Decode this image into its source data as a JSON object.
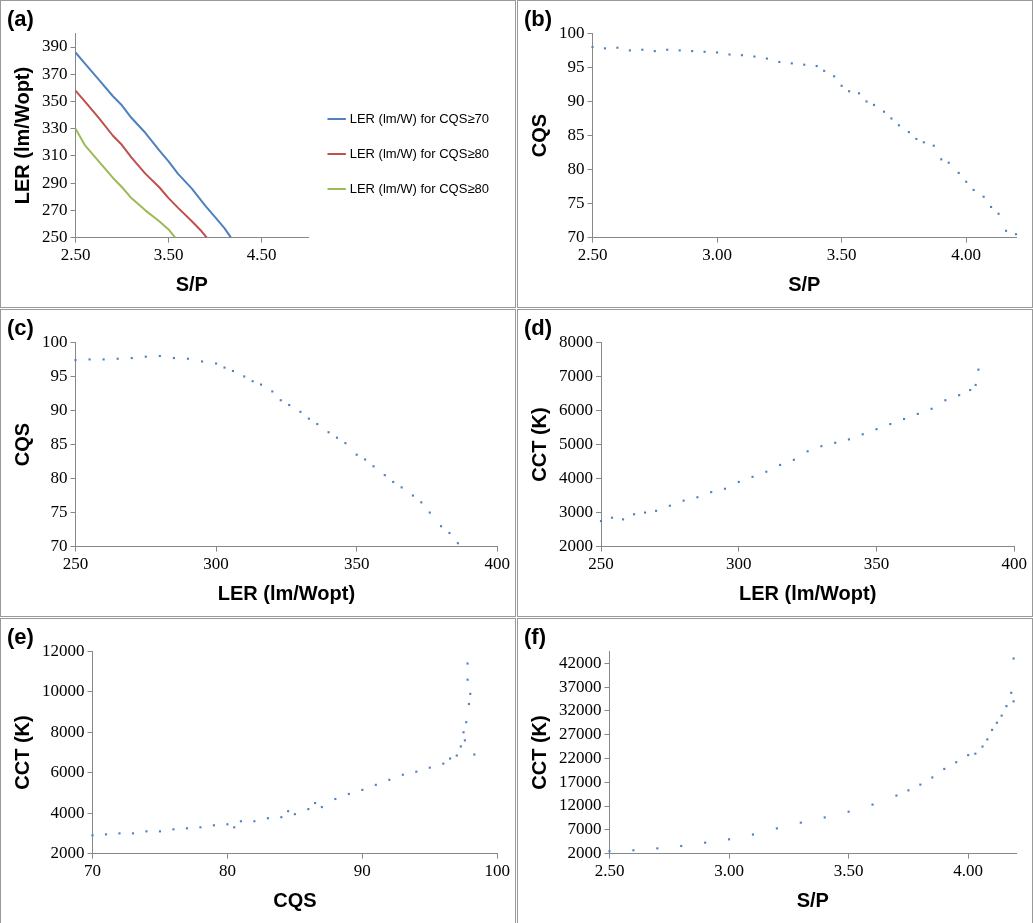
{
  "chart_data": [
    {
      "type": "line",
      "title": "(a)",
      "xlabel": "S/P",
      "ylabel": "LER (lm/Wopt)",
      "marker": "none",
      "legend": "right",
      "xlim": [
        2.5,
        5.0
      ],
      "xticks": [
        {
          "value": 2.5,
          "label": "2.50"
        },
        {
          "value": 3.5,
          "label": "3.50"
        },
        {
          "value": 4.5,
          "label": "4.50"
        }
      ],
      "ylim": [
        250,
        400
      ],
      "yticks": [
        250,
        270,
        290,
        310,
        330,
        350,
        370,
        390
      ],
      "series": [
        {
          "name": "LER (lm/W) for CQS≥70",
          "color": "#4f81bd",
          "x": [
            2.5,
            2.6,
            2.75,
            2.9,
            3.0,
            3.1,
            3.25,
            3.4,
            3.5,
            3.6,
            3.75,
            3.9,
            4.0,
            4.1,
            4.17
          ],
          "values": [
            386,
            378,
            366,
            354,
            347,
            338,
            327,
            314,
            306,
            297,
            286,
            273,
            265,
            257,
            250
          ]
        },
        {
          "name": "LER (lm/W) for CQS≥80",
          "color": "#c0504d",
          "x": [
            2.5,
            2.6,
            2.75,
            2.9,
            3.0,
            3.1,
            3.25,
            3.4,
            3.5,
            3.6,
            3.75,
            3.85,
            3.91
          ],
          "values": [
            358,
            350,
            338,
            325,
            318,
            309,
            297,
            287,
            279,
            272,
            262,
            255,
            250
          ]
        },
        {
          "name": "LER (lm/W) for CQS≥80",
          "color": "#9bbb59",
          "x": [
            2.5,
            2.6,
            2.75,
            2.9,
            3.0,
            3.1,
            3.25,
            3.4,
            3.5,
            3.57
          ],
          "values": [
            330,
            318,
            306,
            294,
            287,
            279,
            270,
            262,
            256,
            250
          ]
        }
      ]
    },
    {
      "type": "scatter",
      "title": "(b)",
      "xlabel": "S/P",
      "ylabel": "CQS",
      "marker": "square",
      "color": "#4f81bd",
      "xlim": [
        2.5,
        4.2
      ],
      "xticks": [
        {
          "value": 2.5,
          "label": "2.50"
        },
        {
          "value": 3.0,
          "label": "3.00"
        },
        {
          "value": 3.5,
          "label": "3.50"
        },
        {
          "value": 4.0,
          "label": "4.00"
        }
      ],
      "ylim": [
        70,
        100
      ],
      "yticks": [
        70,
        75,
        80,
        85,
        90,
        95,
        100
      ],
      "x": [
        2.5,
        2.55,
        2.6,
        2.65,
        2.7,
        2.75,
        2.8,
        2.85,
        2.9,
        2.95,
        3.0,
        3.05,
        3.1,
        3.15,
        3.2,
        3.25,
        3.3,
        3.35,
        3.4,
        3.43,
        3.47,
        3.5,
        3.53,
        3.57,
        3.6,
        3.63,
        3.67,
        3.7,
        3.73,
        3.77,
        3.8,
        3.83,
        3.87,
        3.9,
        3.93,
        3.97,
        4.0,
        4.03,
        4.07,
        4.1,
        4.13,
        4.16,
        4.2
      ],
      "values": [
        98,
        97.8,
        97.9,
        97.5,
        97.6,
        97.4,
        97.6,
        97.5,
        97.4,
        97.3,
        97.2,
        96.9,
        96.8,
        96.6,
        96.3,
        95.8,
        95.6,
        95.4,
        95.2,
        94.5,
        93.7,
        92.3,
        91.5,
        91.2,
        90,
        89.5,
        88.5,
        87.5,
        86.5,
        85.5,
        84.5,
        84,
        83.5,
        81.5,
        81,
        79.5,
        78.2,
        77,
        76,
        74.5,
        73.5,
        71,
        70.5
      ]
    },
    {
      "type": "scatter",
      "title": "(c)",
      "xlabel": "LER (lm/Wopt)",
      "ylabel": "CQS",
      "marker": "square",
      "color": "#4f81bd",
      "xlim": [
        250,
        400
      ],
      "xticks": [
        250,
        300,
        350,
        400
      ],
      "ylim": [
        70,
        100
      ],
      "yticks": [
        70,
        75,
        80,
        85,
        90,
        95,
        100
      ],
      "x": [
        250,
        255,
        260,
        265,
        270,
        275,
        280,
        285,
        290,
        295,
        300,
        303,
        306,
        310,
        313,
        316,
        320,
        323,
        326,
        330,
        333,
        336,
        340,
        343,
        346,
        350,
        353,
        356,
        360,
        363,
        366,
        370,
        373,
        376,
        380,
        383,
        386
      ],
      "values": [
        97.4,
        97.5,
        97.5,
        97.6,
        97.7,
        97.9,
        98,
        97.7,
        97.6,
        97.2,
        96.9,
        96.3,
        95.8,
        95,
        94.3,
        93.8,
        92.8,
        91.5,
        90.8,
        89.8,
        88.8,
        88,
        86.8,
        86,
        85.2,
        83.5,
        82.8,
        81.8,
        80.5,
        79.5,
        78.7,
        77.5,
        76.5,
        75,
        73,
        72,
        70.5
      ]
    },
    {
      "type": "scatter",
      "title": "(d)",
      "xlabel": "LER (lm/Wopt)",
      "ylabel": "CCT (K)",
      "marker": "square",
      "color": "#4f81bd",
      "xlim": [
        250,
        400
      ],
      "xticks": [
        250,
        300,
        350,
        400
      ],
      "ylim": [
        2000,
        8000
      ],
      "yticks": [
        2000,
        3000,
        4000,
        5000,
        6000,
        7000,
        8000
      ],
      "x": [
        250,
        254,
        258,
        262,
        266,
        270,
        275,
        280,
        285,
        290,
        295,
        300,
        305,
        310,
        315,
        320,
        325,
        330,
        335,
        340,
        345,
        350,
        355,
        360,
        365,
        370,
        375,
        380,
        384,
        386,
        387
      ],
      "values": [
        2750,
        2850,
        2800,
        2950,
        3000,
        3050,
        3200,
        3350,
        3450,
        3600,
        3700,
        3900,
        4050,
        4200,
        4400,
        4550,
        4800,
        4950,
        5050,
        5150,
        5300,
        5450,
        5600,
        5750,
        5900,
        6050,
        6300,
        6450,
        6600,
        6750,
        7200
      ]
    },
    {
      "type": "scatter",
      "title": "(e)",
      "xlabel": "CQS",
      "ylabel": "CCT (K)",
      "marker": "square",
      "color": "#4f81bd",
      "xlim": [
        70,
        100
      ],
      "xticks": [
        70,
        80,
        90,
        100
      ],
      "ylim": [
        2000,
        12000
      ],
      "yticks": [
        2000,
        4000,
        6000,
        8000,
        10000,
        12000
      ],
      "x": [
        70,
        71,
        72,
        73,
        74,
        75,
        76,
        77,
        78,
        79,
        80,
        80.5,
        81,
        82,
        83,
        84,
        84.5,
        85,
        86,
        86.5,
        87,
        88,
        89,
        90,
        91,
        92,
        93,
        94,
        95,
        96,
        96.5,
        97,
        97.3,
        97.5,
        97.6,
        97.7,
        97.8,
        97.8,
        97.9,
        98,
        98.3
      ],
      "values": [
        2900,
        2950,
        3000,
        3000,
        3100,
        3100,
        3200,
        3250,
        3300,
        3400,
        3450,
        3300,
        3600,
        3600,
        3750,
        3800,
        4100,
        3950,
        4200,
        4500,
        4300,
        4700,
        4950,
        5150,
        5400,
        5650,
        5900,
        6050,
        6250,
        6450,
        6700,
        6850,
        7300,
        8000,
        7600,
        8500,
        10600,
        11400,
        9400,
        9900,
        6900
      ]
    },
    {
      "type": "scatter",
      "title": "(f)",
      "xlabel": "S/P",
      "ylabel": "CCT (K)",
      "marker": "square",
      "color": "#4f81bd",
      "xlim": [
        2.5,
        4.2
      ],
      "xticks": [
        {
          "value": 2.5,
          "label": "2.50"
        },
        {
          "value": 3.0,
          "label": "3.00"
        },
        {
          "value": 3.5,
          "label": "3.50"
        },
        {
          "value": 4.0,
          "label": "4.00"
        }
      ],
      "ylim": [
        2000,
        44500
      ],
      "yticks": [
        2000,
        7000,
        12000,
        17000,
        22000,
        27000,
        32000,
        37000,
        42000
      ],
      "x": [
        2.5,
        2.6,
        2.7,
        2.8,
        2.9,
        3.0,
        3.1,
        3.2,
        3.3,
        3.4,
        3.5,
        3.6,
        3.7,
        3.75,
        3.8,
        3.85,
        3.9,
        3.95,
        4.0,
        4.03,
        4.06,
        4.08,
        4.1,
        4.12,
        4.14,
        4.16,
        4.18,
        4.19,
        4.19
      ],
      "values": [
        2500,
        2700,
        3100,
        3600,
        4300,
        5000,
        6000,
        7300,
        8500,
        9600,
        10800,
        12300,
        14200,
        15300,
        16500,
        18000,
        19800,
        21200,
        22700,
        23000,
        24500,
        26000,
        28000,
        29500,
        31000,
        33000,
        35800,
        43000,
        34000
      ]
    }
  ]
}
